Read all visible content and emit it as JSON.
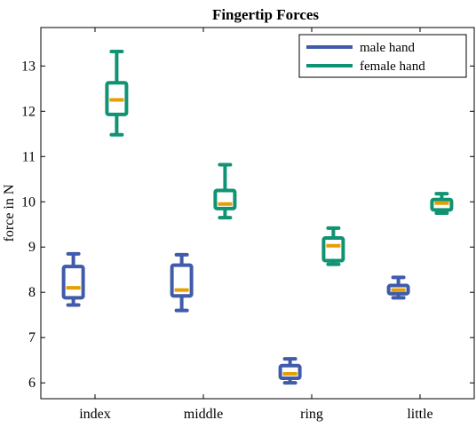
{
  "chart_data": {
    "type": "box",
    "title": "Fingertip Forces",
    "xlabel": "",
    "ylabel": "force in N",
    "categories": [
      "index",
      "middle",
      "ring",
      "little"
    ],
    "ylim": [
      5.65,
      13.85
    ],
    "yticks": [
      6,
      7,
      8,
      9,
      10,
      11,
      12,
      13
    ],
    "grid": false,
    "legend": {
      "position": "top-right"
    },
    "median_color": "#e69f00",
    "series": [
      {
        "name": "male hand",
        "color": "#3f5ba9",
        "boxes": [
          {
            "min": 7.72,
            "q1": 7.88,
            "median": 8.1,
            "q3": 8.57,
            "max": 8.85
          },
          {
            "min": 7.6,
            "q1": 7.92,
            "median": 8.05,
            "q3": 8.6,
            "max": 8.83
          },
          {
            "min": 6.0,
            "q1": 6.1,
            "median": 6.2,
            "q3": 6.38,
            "max": 6.53
          },
          {
            "min": 7.88,
            "q1": 7.97,
            "median": 8.05,
            "q3": 8.15,
            "max": 8.33
          }
        ]
      },
      {
        "name": "female hand",
        "color": "#0f9373",
        "boxes": [
          {
            "min": 11.48,
            "q1": 11.93,
            "median": 12.25,
            "q3": 12.63,
            "max": 13.32
          },
          {
            "min": 9.65,
            "q1": 9.85,
            "median": 9.95,
            "q3": 10.25,
            "max": 10.82
          },
          {
            "min": 8.62,
            "q1": 8.7,
            "median": 9.03,
            "q3": 9.2,
            "max": 9.42
          },
          {
            "min": 9.75,
            "q1": 9.82,
            "median": 9.97,
            "q3": 10.05,
            "max": 10.18
          }
        ]
      }
    ]
  }
}
